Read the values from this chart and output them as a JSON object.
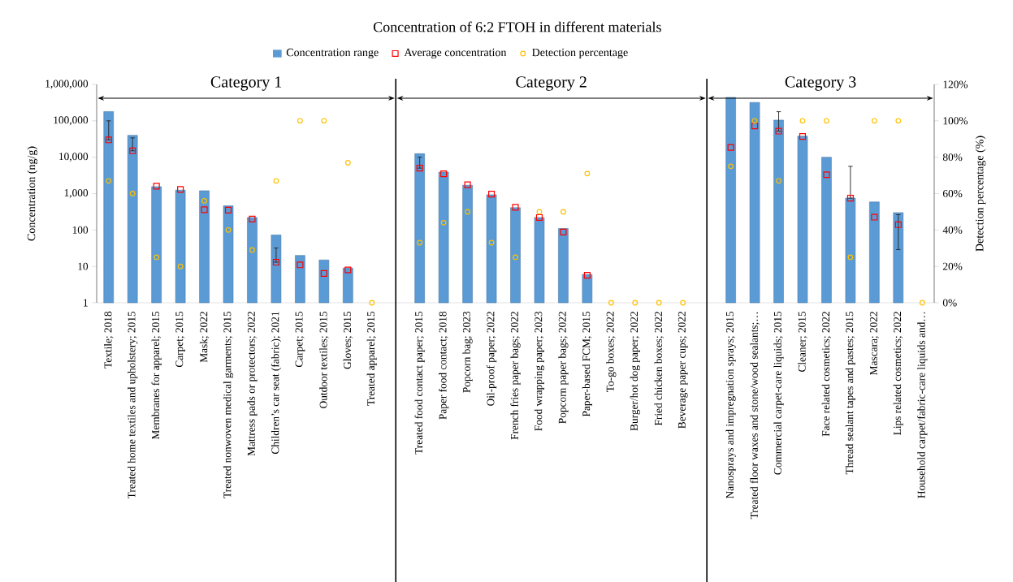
{
  "chart_data": {
    "type": "bar",
    "title": "Concentration of 6:2 FTOH in different materials",
    "categories": [
      "Textile; 2018",
      "Treated home textiles and upholstery; 2015",
      "Membranes for apparel; 2015",
      "Carpet; 2015",
      "Mask; 2022",
      "Treated nonwoven medical garments; 2015",
      "Mattress pads or protectors; 2022",
      "Children’s car seat (fabric); 2021",
      "Carpet; 2015",
      "Outdoor textiles; 2015",
      "Gloves; 2015",
      "Treated apparel; 2015",
      null,
      "Treated food contact paper; 2015",
      "Paper food contact; 2018",
      "Popcorn bag; 2023",
      "Oil-proof paper; 2022",
      "French fries paper bags; 2022",
      "Food wrapping paper; 2023",
      "Popcorn paper bags; 2022",
      "Paper-based FCM; 2015",
      "To-go boxes; 2022",
      "Burger/hot dog paper; 2022",
      "Fried chicken boxes; 2022",
      "Beverage paper cups; 2022",
      null,
      "Nanosprays and impregnation sprays; 2015",
      "Treated floor waxes and stone/wood sealants;…",
      "Commercial carpet-care liquids; 2015",
      "Cleaner; 2015",
      "Face related cosmetics; 2022",
      "Thread sealant tapes and pastes; 2015",
      "Mascara; 2022",
      "Lips related cosmetics; 2022",
      "Household carpet/fabric-care liquids and…"
    ],
    "series": [
      {
        "name": "Concentration range",
        "color": "#5b9bd5",
        "values": [
          180000,
          40000,
          1550,
          1250,
          1200,
          460,
          220,
          73,
          20,
          15,
          9,
          null,
          null,
          12500,
          3900,
          1700,
          930,
          410,
          220,
          110,
          6,
          null,
          null,
          null,
          null,
          null,
          440000,
          320000,
          105000,
          38000,
          10000,
          750,
          590,
          300,
          null
        ]
      },
      {
        "name": "Average concentration",
        "type": "scatter",
        "marker": "square",
        "color": "#ff0000",
        "values": [
          30000,
          15000,
          1600,
          1300,
          360,
          350,
          200,
          13,
          11,
          6.4,
          8,
          null,
          null,
          5000,
          3500,
          1750,
          970,
          420,
          220,
          88,
          5.7,
          null,
          null,
          null,
          null,
          null,
          18500,
          72000,
          52000,
          37000,
          3300,
          750,
          225,
          140,
          null
        ],
        "errors": [
          [
            30000,
            100000
          ],
          [
            15000,
            34000
          ],
          null,
          null,
          null,
          null,
          null,
          [
            13,
            32
          ],
          null,
          null,
          null,
          null,
          null,
          [
            5000,
            10000
          ],
          null,
          null,
          null,
          null,
          null,
          null,
          null,
          null,
          null,
          null,
          null,
          null,
          null,
          null,
          [
            52000,
            178000
          ],
          null,
          null,
          [
            750,
            5600
          ],
          null,
          [
            29,
            263
          ],
          null
        ]
      },
      {
        "name": "Detection percentage",
        "type": "scatter",
        "marker": "circle",
        "axis": "y2",
        "color": "#ffc000",
        "values": [
          67,
          60,
          25,
          20,
          56,
          40,
          29,
          67,
          100,
          100,
          77,
          0,
          null,
          33,
          44,
          50,
          33,
          25,
          50,
          50,
          71,
          0,
          0,
          0,
          0,
          null,
          75,
          100,
          67,
          100,
          100,
          25,
          100,
          100,
          0
        ]
      }
    ],
    "ylabel": "Concentration (ng/g)",
    "y2label": "Detection percentage (%)",
    "log": "y",
    "ylim": [
      1,
      1000000
    ],
    "yticks": [
      1,
      10,
      100,
      {
        "value": 1000,
        "label": "1,000"
      },
      {
        "value": 10000,
        "label": "10,000"
      },
      {
        "value": 100000,
        "label": "100,000"
      },
      {
        "value": 1000000,
        "label": "1,000,000"
      }
    ],
    "y2lim": [
      0,
      120
    ],
    "y2ticks": [
      {
        "value": 0,
        "label": "0%"
      },
      {
        "value": 20,
        "label": "20%"
      },
      {
        "value": 40,
        "label": "40%"
      },
      {
        "value": 60,
        "label": "60%"
      },
      {
        "value": 80,
        "label": "80%"
      },
      {
        "value": 100,
        "label": "100%"
      },
      {
        "value": 120,
        "label": "120%"
      }
    ],
    "legend": "top",
    "annotations": [
      "Category 1",
      "Category 2",
      "Category 3"
    ]
  }
}
